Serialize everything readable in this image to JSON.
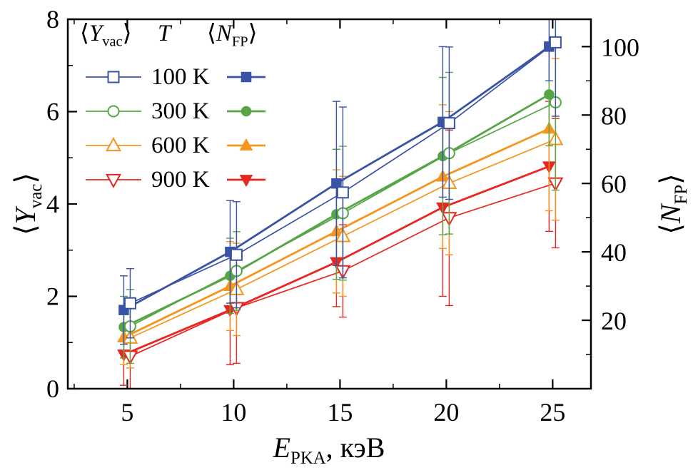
{
  "chart_data": {
    "type": "line",
    "title": "",
    "xlabel": "E_PKA, кэВ",
    "ylabel_left": "⟨Y_vac⟩",
    "ylabel_right": "⟨N_FP⟩",
    "grid": false,
    "legend_position": "top-left",
    "x": [
      5,
      10,
      15,
      20,
      25
    ],
    "axes": {
      "x": {
        "letter": "E",
        "sub": "PKA",
        "rest": ", кэВ",
        "min": 2.2,
        "max": 26.8,
        "ticks": [
          5,
          10,
          15,
          20,
          25
        ],
        "minor": [
          2.5,
          7.5,
          12.5,
          17.5,
          22.5
        ]
      },
      "left": {
        "pre": "⟨",
        "letter": "Y",
        "sub": "vac",
        "post": "⟩",
        "min": 0,
        "max": 8,
        "ticks": [
          0,
          2,
          4,
          6,
          8
        ],
        "minor": [
          1,
          3,
          5,
          7
        ]
      },
      "right": {
        "pre": "⟨",
        "letter": "N",
        "sub": "FP",
        "post": "⟩",
        "min": 0,
        "max": 108,
        "ticks": [
          20,
          40,
          60,
          80,
          100
        ],
        "minor": [
          10,
          30,
          50,
          70,
          90
        ]
      }
    },
    "legend": {
      "header": {
        "col1_pre": "⟨",
        "col1_letter": "Y",
        "col1_sub": "vac",
        "col1_post": "⟩",
        "col2": "T",
        "col3_pre": "⟨",
        "col3_letter": "N",
        "col3_sub": "FP",
        "col3_post": "⟩"
      }
    },
    "series": [
      {
        "name": "100 K",
        "color": "#3a53a4",
        "marker": "square",
        "yvac": [
          1.85,
          2.9,
          4.25,
          5.75,
          7.5
        ],
        "yvac_err": [
          0.75,
          1.15,
          1.85,
          1.65,
          1.6
        ],
        "nfp": [
          23,
          40,
          60,
          78,
          100
        ],
        "nfp_err": [
          10,
          15,
          24,
          22,
          10
        ]
      },
      {
        "name": "300 K",
        "color": "#56a646",
        "marker": "circle",
        "yvac": [
          1.35,
          2.55,
          3.8,
          5.1,
          6.2
        ],
        "yvac_err": [
          0.8,
          0.85,
          1.45,
          1.75,
          1.9
        ],
        "nfp": [
          18,
          33,
          51,
          68,
          86
        ],
        "nfp_err": [
          9,
          11,
          19,
          23,
          15
        ]
      },
      {
        "name": "600 K",
        "color": "#f7941d",
        "marker": "triangle-up",
        "yvac": [
          1.1,
          2.15,
          3.3,
          4.45,
          5.4
        ],
        "yvac_err": [
          0.65,
          1.0,
          1.3,
          1.55,
          1.75
        ],
        "nfp": [
          15,
          30,
          46,
          62,
          76
        ],
        "nfp_err": [
          8,
          13,
          18,
          21,
          24
        ]
      },
      {
        "name": "900 K",
        "color": "#e8251f",
        "marker": "triangle-down",
        "yvac": [
          0.7,
          1.75,
          2.55,
          3.7,
          4.45
        ],
        "yvac_err": [
          0.7,
          1.2,
          1.0,
          1.9,
          1.4
        ],
        "nfp": [
          10,
          23,
          37,
          53,
          65
        ],
        "nfp_err": [
          9,
          16,
          13,
          26,
          19
        ]
      }
    ]
  }
}
